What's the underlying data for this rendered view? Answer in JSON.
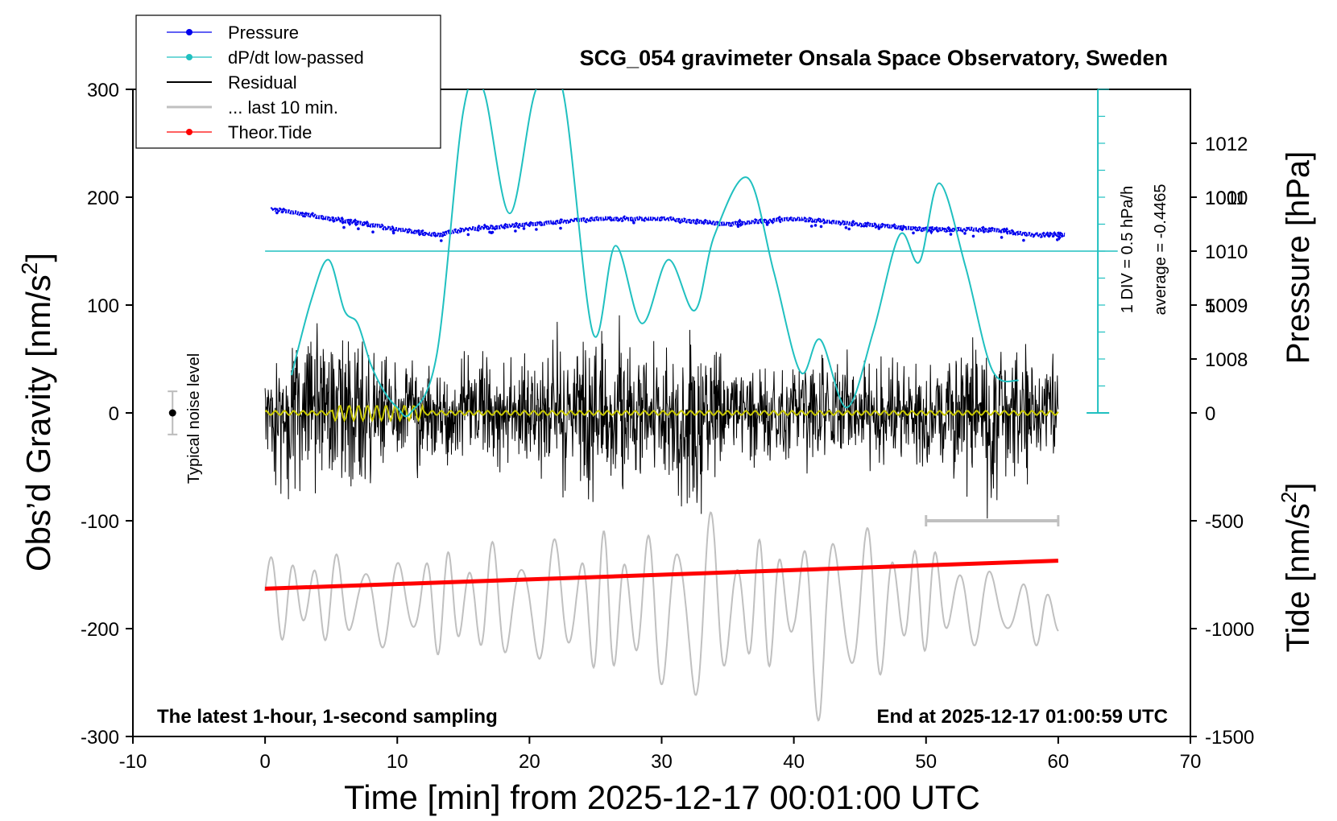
{
  "chart_data": {
    "type": "line",
    "title": "SCG_054 gravimeter Onsala Space Observatory, Sweden",
    "xlabel": "Time [min] from 2025-12-17 00:01:00 UTC",
    "ylabel_main": "Obs’d Gravity",
    "ylabel_unit": "[nm/s",
    "ylabel_sup": "2",
    "ylabel_close": "]",
    "xlim": [
      -10,
      70
    ],
    "ylim": [
      -300,
      300
    ],
    "x_ticks": [
      -10,
      0,
      10,
      20,
      30,
      40,
      50,
      60,
      70
    ],
    "y_ticks": [
      -300,
      -200,
      -100,
      0,
      100,
      200,
      300
    ],
    "pressure_axis": {
      "label": "Pressure [hPa]",
      "ticks": [
        1008,
        1009,
        1010,
        1011,
        1012
      ],
      "range_at_y300": 1013,
      "value_at_y0": 1007
    },
    "tide_axis": {
      "label_main": "Tide",
      "label_unit": "[nm/s",
      "label_sup": "2",
      "label_close": "]",
      "ticks": [
        -1500,
        -1000,
        -500,
        0,
        500,
        1000
      ]
    },
    "legend": [
      "Pressure",
      "dP/dt low-passed",
      "Residual",
      "... last 10 min.",
      "Theor.Tide"
    ],
    "series": [
      {
        "name": "Pressure",
        "color": "#0000ee",
        "x": [
          0,
          5,
          10,
          13,
          15,
          20,
          25,
          30,
          35,
          40,
          45,
          50,
          55,
          58,
          60
        ],
        "values": [
          1010.8,
          1010.6,
          1010.4,
          1010.3,
          1010.4,
          1010.5,
          1010.6,
          1010.6,
          1010.5,
          1010.6,
          1010.5,
          1010.4,
          1010.4,
          1010.3,
          1010.3
        ]
      },
      {
        "name": "dP/dt low-passed",
        "color": "#20c0c0",
        "x": [
          2,
          3.5,
          4.8,
          6,
          7,
          8,
          9,
          10,
          11,
          13,
          15,
          16.5,
          18.5,
          20.5,
          22.5,
          24.8,
          26.5,
          28.5,
          30.5,
          32.5,
          34,
          36.5,
          38.5,
          40.5,
          42,
          44,
          46,
          48,
          49.5,
          51,
          53,
          55,
          57
        ],
        "values": [
          35,
          105,
          142,
          95,
          83,
          45,
          20,
          5,
          0,
          55,
          280,
          300,
          185,
          300,
          300,
          74,
          155,
          83,
          142,
          95,
          165,
          218,
          130,
          38,
          68,
          5,
          75,
          165,
          140,
          213,
          135,
          40,
          30
        ]
      },
      {
        "name": "Residual",
        "color": "#000000",
        "x": [
          0,
          5,
          10,
          15,
          20,
          25,
          30,
          32.5,
          35,
          40,
          45,
          50,
          55,
          60
        ],
        "values": [
          0,
          0,
          0,
          0,
          0,
          0,
          0,
          0,
          0,
          0,
          0,
          0,
          0,
          0
        ],
        "envelope": [
          60,
          90,
          55,
          60,
          65,
          95,
          70,
          125,
          60,
          55,
          60,
          65,
          95,
          60
        ]
      },
      {
        "name": "... last 10 min.",
        "color": "#c0c0c0",
        "x": [
          0,
          10,
          20,
          30,
          32.5,
          35,
          40,
          42,
          50,
          60
        ],
        "values": [
          -170,
          -175,
          -175,
          -180,
          -185,
          -180,
          -175,
          -190,
          -170,
          -190
        ],
        "envelope": [
          40,
          45,
          60,
          75,
          110,
          70,
          55,
          100,
          50,
          25
        ]
      },
      {
        "name": "Theor.Tide",
        "color": "#ff0000",
        "x": [
          0,
          60
        ],
        "values": [
          -163,
          -137
        ]
      }
    ],
    "noise_marker": {
      "x": -7,
      "y": 0,
      "err": 20,
      "label": "Typical noise level"
    },
    "scale_bar": {
      "label": "1 DIV = 0.5 hPa/h",
      "average": "average = -0.4465"
    },
    "last10_bar": {
      "x_from": 50,
      "x_to": 60,
      "y": -100
    },
    "footer_left": "The latest 1-hour, 1-second sampling",
    "footer_right": "End at 2025-12-17 01:00:59 UTC"
  }
}
